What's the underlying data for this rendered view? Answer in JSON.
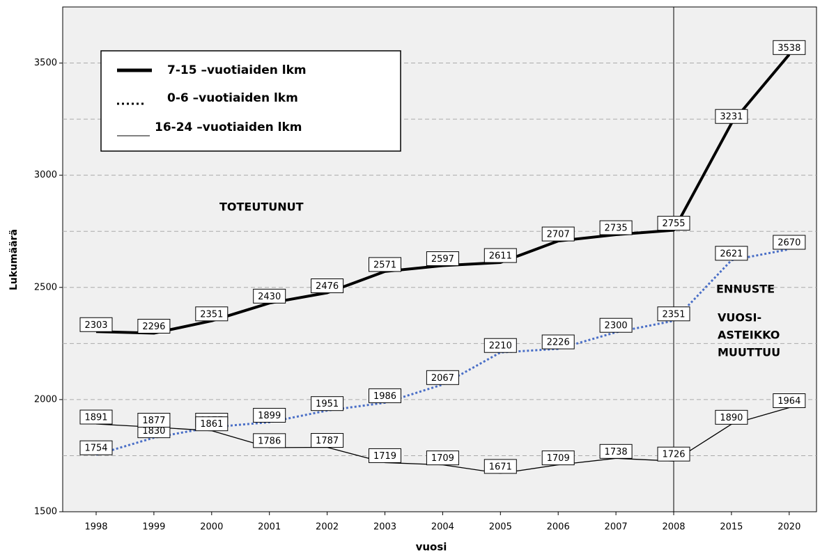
{
  "chart_data": {
    "type": "line",
    "categories": [
      "1998",
      "1999",
      "2000",
      "2001",
      "2002",
      "2003",
      "2004",
      "2005",
      "2006",
      "2007",
      "2008",
      "2015",
      "2020"
    ],
    "series": [
      {
        "name": "7-15 –vuotiaiden lkm",
        "color": "#000000",
        "style": "solid",
        "values": [
          2303,
          2296,
          2351,
          2430,
          2476,
          2571,
          2597,
          2611,
          2707,
          2735,
          2755,
          3231,
          3538
        ]
      },
      {
        "name": "0-6 –vuotiaiden lkm",
        "color": "#4a6fc7",
        "style": "dotted",
        "values": [
          1754,
          1830,
          1877,
          1899,
          1951,
          1986,
          2067,
          2210,
          2226,
          2300,
          2351,
          2621,
          2670
        ]
      },
      {
        "name": "16-24 –vuotiaiden lkm",
        "color": "#000000",
        "style": "thin",
        "values": [
          1891,
          1877,
          1861,
          1786,
          1787,
          1719,
          1709,
          1671,
          1709,
          1738,
          1726,
          1890,
          1964
        ]
      }
    ],
    "xlabel": "vuosi",
    "ylabel": "Lukumäärä",
    "ylim": [
      1500,
      3750
    ],
    "yticks": [
      1500,
      2000,
      2500,
      3000,
      3500
    ],
    "minor_grid": [
      1750,
      2250,
      2750,
      3250
    ],
    "grid": true,
    "divider": "2008",
    "annotations": [
      "TOTEUTUNUT",
      "ENNUSTE",
      "VUOSI-",
      "ASTEIKKO",
      "MUUTTUU"
    ]
  }
}
